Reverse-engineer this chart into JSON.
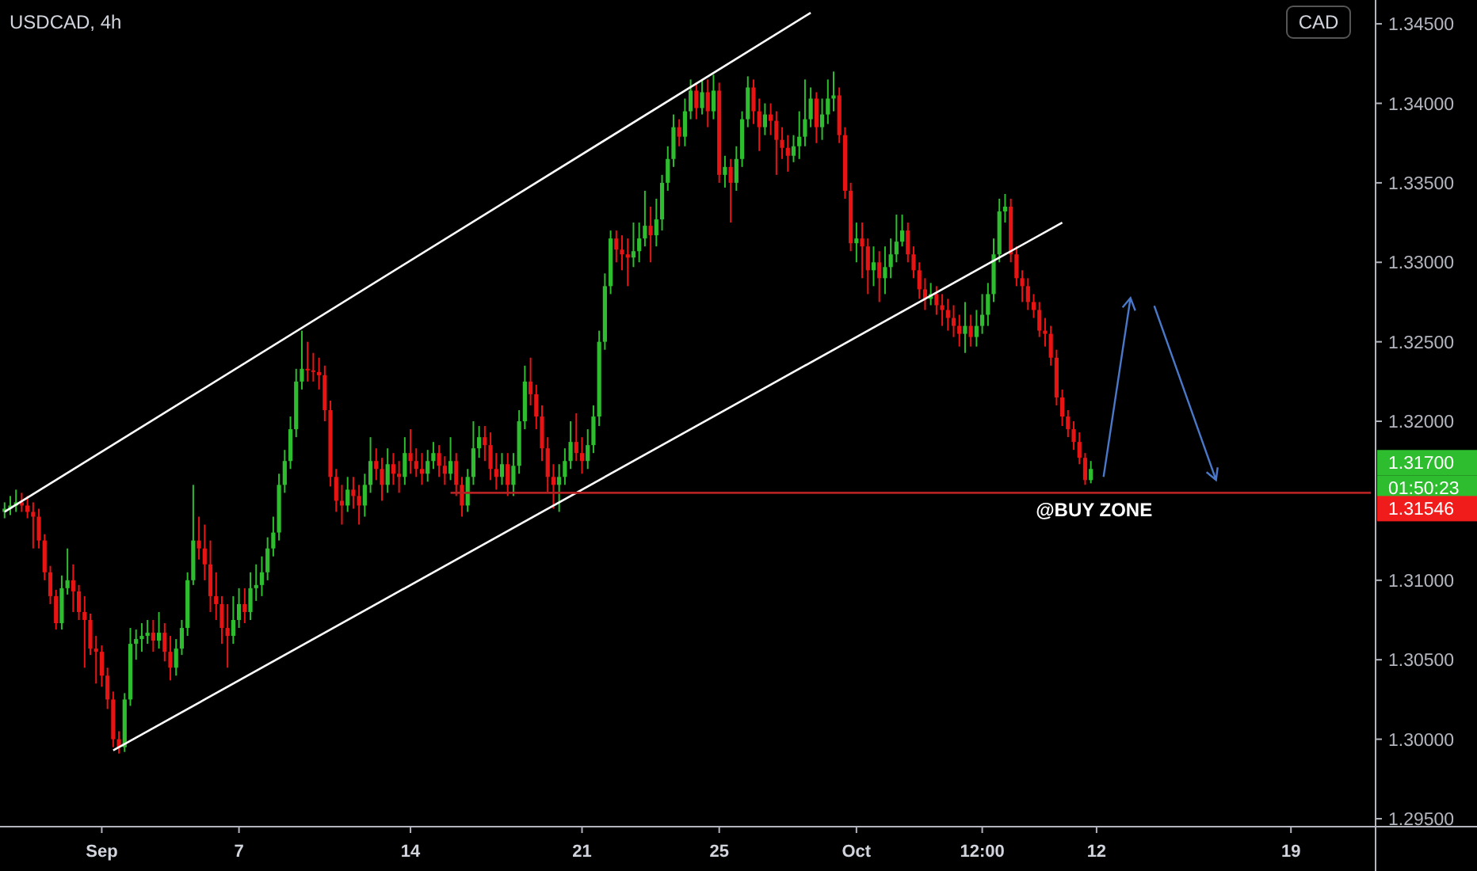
{
  "chart_data": {
    "type": "candlestick",
    "title": "USDCAD, 4h",
    "categories": [
      null,
      null,
      null,
      null,
      null,
      null,
      null,
      null,
      null,
      null,
      null,
      null,
      null,
      null,
      null,
      null,
      null,
      "Sep",
      null,
      null,
      null,
      null,
      null,
      null,
      null,
      null,
      null,
      null,
      null,
      null,
      null,
      null,
      null,
      null,
      null,
      null,
      null,
      null,
      null,
      null,
      null,
      "7",
      null,
      null,
      null,
      null,
      null,
      null,
      null,
      null,
      null,
      null,
      null,
      null,
      null,
      null,
      null,
      null,
      null,
      null,
      null,
      null,
      null,
      null,
      null,
      null,
      null,
      null,
      null,
      null,
      null,
      "14",
      null,
      null,
      null,
      null,
      null,
      null,
      null,
      null,
      null,
      null,
      null,
      null,
      null,
      null,
      null,
      null,
      null,
      null,
      null,
      null,
      null,
      null,
      null,
      null,
      null,
      null,
      null,
      null,
      null,
      "21",
      null,
      null,
      null,
      null,
      null,
      null,
      null,
      null,
      null,
      null,
      null,
      null,
      null,
      null,
      null,
      null,
      null,
      null,
      null,
      null,
      null,
      null,
      null,
      "25",
      null,
      null,
      null,
      null,
      null,
      null,
      null,
      null,
      null,
      null,
      null,
      null,
      null,
      null,
      null,
      null,
      null,
      null,
      null,
      null,
      null,
      null,
      null,
      "Oct",
      null,
      null,
      null,
      null,
      null,
      null,
      null,
      null,
      null,
      null,
      null,
      null,
      null,
      null,
      null,
      null,
      null,
      null,
      null,
      null,
      null,
      "12:00",
      null,
      null,
      null,
      null,
      null,
      null,
      null,
      null,
      null,
      null,
      null,
      null,
      null,
      null,
      null,
      null,
      null,
      null,
      null,
      "12",
      null,
      null,
      null,
      null,
      null,
      null,
      null,
      null,
      null,
      null,
      null,
      null,
      null,
      null,
      null,
      null,
      null,
      null,
      null,
      null,
      null,
      null,
      null,
      null,
      null,
      null,
      null,
      null,
      null,
      null,
      null,
      null,
      null,
      "19",
      null,
      null,
      null,
      null,
      null,
      null,
      null,
      null,
      null,
      null,
      null,
      null,
      null,
      null
    ],
    "ylim": [
      1.2945,
      1.3465
    ],
    "yticks": [
      {
        "value": 1.295,
        "label": "1.29500"
      },
      {
        "value": 1.3,
        "label": "1.30000"
      },
      {
        "value": 1.305,
        "label": "1.30500"
      },
      {
        "value": 1.31,
        "label": "1.31000"
      },
      {
        "value": 1.32,
        "label": "1.32000"
      },
      {
        "value": 1.325,
        "label": "1.32500"
      },
      {
        "value": 1.33,
        "label": "1.33000"
      },
      {
        "value": 1.335,
        "label": "1.33500"
      },
      {
        "value": 1.34,
        "label": "1.34000"
      },
      {
        "value": 1.345,
        "label": "1.34500"
      }
    ],
    "grid": false,
    "annotations": [
      "CAD",
      "@BUY ZONE",
      "1.31700",
      "01:50:23",
      "1.31546"
    ],
    "series": [
      {
        "ohlc": [
          [
            1.3143,
            1.3149,
            1.3139,
            1.3145
          ],
          [
            1.3145,
            1.3153,
            1.3141,
            1.3147
          ],
          [
            1.3147,
            1.3157,
            1.3143,
            1.3149
          ],
          [
            1.3149,
            1.3155,
            1.3143,
            1.3147
          ],
          [
            1.3147,
            1.3153,
            1.3139,
            1.3143
          ],
          [
            1.3143,
            1.3149,
            1.312,
            1.314
          ],
          [
            1.314,
            1.3145,
            1.312,
            1.3125
          ],
          [
            1.3125,
            1.3129,
            1.31,
            1.3105
          ],
          [
            1.3105,
            1.3109,
            1.3085,
            1.309
          ],
          [
            1.309,
            1.3094,
            1.3069,
            1.3073
          ],
          [
            1.3073,
            1.3103,
            1.3069,
            1.3095
          ],
          [
            1.3095,
            1.312,
            1.3091,
            1.31
          ],
          [
            1.31,
            1.311,
            1.308,
            1.3093
          ],
          [
            1.3093,
            1.3097,
            1.3075,
            1.308
          ],
          [
            1.308,
            1.309,
            1.3045,
            1.3075
          ],
          [
            1.3075,
            1.3079,
            1.3053,
            1.3057
          ],
          [
            1.3057,
            1.3065,
            1.3035,
            1.3055
          ],
          [
            1.3055,
            1.3059,
            1.3033,
            1.304
          ],
          [
            1.304,
            1.3045,
            1.3019,
            1.3025
          ],
          [
            1.3025,
            1.303,
            1.2995,
            1.3
          ],
          [
            1.3,
            1.3005,
            1.2991,
            1.2995
          ],
          [
            1.2995,
            1.3029,
            1.2992,
            1.3025
          ],
          [
            1.3025,
            1.307,
            1.3021,
            1.306
          ],
          [
            1.306,
            1.3069,
            1.305,
            1.3063
          ],
          [
            1.3063,
            1.3073,
            1.3055,
            1.3065
          ],
          [
            1.3065,
            1.3075,
            1.306,
            1.3067
          ],
          [
            1.3067,
            1.3075,
            1.3055,
            1.3062
          ],
          [
            1.3062,
            1.308,
            1.3057,
            1.3067
          ],
          [
            1.3067,
            1.3073,
            1.3049,
            1.3055
          ],
          [
            1.3055,
            1.3065,
            1.3037,
            1.3045
          ],
          [
            1.3045,
            1.3063,
            1.304,
            1.3057
          ],
          [
            1.3057,
            1.3075,
            1.3053,
            1.307
          ],
          [
            1.307,
            1.3105,
            1.3065,
            1.31
          ],
          [
            1.31,
            1.316,
            1.3097,
            1.3125
          ],
          [
            1.3125,
            1.314,
            1.3113,
            1.312
          ],
          [
            1.312,
            1.3135,
            1.31,
            1.311
          ],
          [
            1.311,
            1.3125,
            1.308,
            1.309
          ],
          [
            1.309,
            1.3105,
            1.3075,
            1.3085
          ],
          [
            1.3085,
            1.309,
            1.306,
            1.307
          ],
          [
            1.307,
            1.3085,
            1.3045,
            1.3065
          ],
          [
            1.3065,
            1.309,
            1.306,
            1.3075
          ],
          [
            1.3075,
            1.3095,
            1.307,
            1.3085
          ],
          [
            1.3085,
            1.3095,
            1.3073,
            1.308
          ],
          [
            1.308,
            1.3105,
            1.3075,
            1.3095
          ],
          [
            1.3095,
            1.311,
            1.3087,
            1.3097
          ],
          [
            1.3097,
            1.3115,
            1.309,
            1.3105
          ],
          [
            1.3105,
            1.3127,
            1.31,
            1.312
          ],
          [
            1.312,
            1.314,
            1.3115,
            1.313
          ],
          [
            1.313,
            1.3167,
            1.3125,
            1.316
          ],
          [
            1.316,
            1.3182,
            1.3155,
            1.3175
          ],
          [
            1.3175,
            1.3203,
            1.317,
            1.3195
          ],
          [
            1.3195,
            1.3233,
            1.319,
            1.3225
          ],
          [
            1.3225,
            1.3257,
            1.322,
            1.3233
          ],
          [
            1.3233,
            1.325,
            1.3225,
            1.3232
          ],
          [
            1.3232,
            1.3243,
            1.3225,
            1.3231
          ],
          [
            1.3231,
            1.324,
            1.322,
            1.3229
          ],
          [
            1.3229,
            1.3235,
            1.32,
            1.3207
          ],
          [
            1.3207,
            1.3213,
            1.3159,
            1.3165
          ],
          [
            1.3165,
            1.317,
            1.3143,
            1.315
          ],
          [
            1.315,
            1.316,
            1.3135,
            1.3147
          ],
          [
            1.3147,
            1.3165,
            1.3143,
            1.3157
          ],
          [
            1.3157,
            1.3165,
            1.3145,
            1.3153
          ],
          [
            1.3153,
            1.316,
            1.3135,
            1.3147
          ],
          [
            1.3147,
            1.3167,
            1.314,
            1.316
          ],
          [
            1.316,
            1.319,
            1.3155,
            1.3175
          ],
          [
            1.3175,
            1.3183,
            1.3163,
            1.317
          ],
          [
            1.317,
            1.3177,
            1.315,
            1.316
          ],
          [
            1.316,
            1.3183,
            1.3155,
            1.3173
          ],
          [
            1.3173,
            1.318,
            1.316,
            1.3167
          ],
          [
            1.3167,
            1.3175,
            1.3155,
            1.3165
          ],
          [
            1.3165,
            1.319,
            1.316,
            1.318
          ],
          [
            1.318,
            1.3195,
            1.3167,
            1.3175
          ],
          [
            1.3175,
            1.3183,
            1.3165,
            1.317
          ],
          [
            1.317,
            1.318,
            1.316,
            1.3167
          ],
          [
            1.3167,
            1.3182,
            1.3162,
            1.3175
          ],
          [
            1.3175,
            1.3187,
            1.317,
            1.318
          ],
          [
            1.318,
            1.3185,
            1.3165,
            1.3172
          ],
          [
            1.3172,
            1.3178,
            1.316,
            1.3167
          ],
          [
            1.3167,
            1.319,
            1.3163,
            1.3175
          ],
          [
            1.3175,
            1.318,
            1.3153,
            1.316
          ],
          [
            1.316,
            1.3165,
            1.314,
            1.3147
          ],
          [
            1.3147,
            1.317,
            1.3143,
            1.3165
          ],
          [
            1.3165,
            1.32,
            1.316,
            1.3183
          ],
          [
            1.3183,
            1.3197,
            1.3177,
            1.319
          ],
          [
            1.319,
            1.3197,
            1.3175,
            1.3185
          ],
          [
            1.3185,
            1.3193,
            1.3163,
            1.317
          ],
          [
            1.317,
            1.318,
            1.3157,
            1.3165
          ],
          [
            1.3165,
            1.318,
            1.316,
            1.3173
          ],
          [
            1.3173,
            1.318,
            1.3153,
            1.316
          ],
          [
            1.316,
            1.318,
            1.3153,
            1.3172
          ],
          [
            1.3172,
            1.3207,
            1.3167,
            1.32
          ],
          [
            1.32,
            1.3235,
            1.3195,
            1.3225
          ],
          [
            1.3225,
            1.324,
            1.321,
            1.3217
          ],
          [
            1.3217,
            1.3223,
            1.3195,
            1.3203
          ],
          [
            1.3203,
            1.321,
            1.3175,
            1.3183
          ],
          [
            1.3183,
            1.319,
            1.3155,
            1.3165
          ],
          [
            1.3165,
            1.3173,
            1.3145,
            1.316
          ],
          [
            1.316,
            1.3173,
            1.3143,
            1.3165
          ],
          [
            1.3165,
            1.3183,
            1.316,
            1.3175
          ],
          [
            1.3175,
            1.32,
            1.317,
            1.3187
          ],
          [
            1.3187,
            1.3205,
            1.3175,
            1.318
          ],
          [
            1.318,
            1.319,
            1.3167,
            1.3175
          ],
          [
            1.3175,
            1.3195,
            1.317,
            1.3185
          ],
          [
            1.3185,
            1.321,
            1.318,
            1.3203
          ],
          [
            1.3203,
            1.3257,
            1.3197,
            1.325
          ],
          [
            1.325,
            1.3293,
            1.3245,
            1.3285
          ],
          [
            1.3285,
            1.332,
            1.328,
            1.3315
          ],
          [
            1.3315,
            1.332,
            1.33,
            1.3308
          ],
          [
            1.3308,
            1.3317,
            1.3295,
            1.3305
          ],
          [
            1.3305,
            1.3315,
            1.3285,
            1.3303
          ],
          [
            1.3303,
            1.3325,
            1.3297,
            1.3307
          ],
          [
            1.3307,
            1.3325,
            1.33,
            1.3315
          ],
          [
            1.3315,
            1.3345,
            1.331,
            1.3323
          ],
          [
            1.3323,
            1.3335,
            1.33,
            1.3317
          ],
          [
            1.3317,
            1.334,
            1.331,
            1.3327
          ],
          [
            1.3327,
            1.3355,
            1.332,
            1.335
          ],
          [
            1.335,
            1.3373,
            1.3345,
            1.3365
          ],
          [
            1.3365,
            1.3393,
            1.336,
            1.3385
          ],
          [
            1.3385,
            1.339,
            1.3373,
            1.3379
          ],
          [
            1.3379,
            1.3403,
            1.3373,
            1.3395
          ],
          [
            1.3395,
            1.3415,
            1.339,
            1.3408
          ],
          [
            1.3408,
            1.3413,
            1.339,
            1.3397
          ],
          [
            1.3397,
            1.3415,
            1.3393,
            1.3407
          ],
          [
            1.3407,
            1.3415,
            1.3385,
            1.3395
          ],
          [
            1.3395,
            1.3418,
            1.339,
            1.3408
          ],
          [
            1.3408,
            1.3413,
            1.335,
            1.3355
          ],
          [
            1.3355,
            1.3367,
            1.3347,
            1.336
          ],
          [
            1.336,
            1.3365,
            1.3325,
            1.335
          ],
          [
            1.335,
            1.3373,
            1.3345,
            1.3365
          ],
          [
            1.3365,
            1.3395,
            1.336,
            1.339
          ],
          [
            1.339,
            1.3417,
            1.3385,
            1.341
          ],
          [
            1.341,
            1.3415,
            1.3387,
            1.3395
          ],
          [
            1.3395,
            1.3403,
            1.337,
            1.3385
          ],
          [
            1.3385,
            1.34,
            1.338,
            1.3393
          ],
          [
            1.3393,
            1.34,
            1.338,
            1.3389
          ],
          [
            1.3389,
            1.3395,
            1.3355,
            1.3377
          ],
          [
            1.3377,
            1.3385,
            1.3365,
            1.3372
          ],
          [
            1.3372,
            1.338,
            1.3357,
            1.3367
          ],
          [
            1.3367,
            1.338,
            1.3363,
            1.3373
          ],
          [
            1.3373,
            1.3395,
            1.3365,
            1.3379
          ],
          [
            1.3379,
            1.3415,
            1.3373,
            1.339
          ],
          [
            1.339,
            1.341,
            1.3385,
            1.3403
          ],
          [
            1.3403,
            1.3407,
            1.3375,
            1.3385
          ],
          [
            1.3385,
            1.3403,
            1.3377,
            1.3393
          ],
          [
            1.3393,
            1.3415,
            1.3387,
            1.3403
          ],
          [
            1.3403,
            1.342,
            1.3395,
            1.3405
          ],
          [
            1.3405,
            1.341,
            1.3375,
            1.338
          ],
          [
            1.338,
            1.3385,
            1.334,
            1.3345
          ],
          [
            1.3345,
            1.335,
            1.3307,
            1.3312
          ],
          [
            1.3312,
            1.3325,
            1.33,
            1.3315
          ],
          [
            1.3315,
            1.3325,
            1.329,
            1.331
          ],
          [
            1.331,
            1.3315,
            1.328,
            1.3295
          ],
          [
            1.3295,
            1.331,
            1.3285,
            1.33
          ],
          [
            1.33,
            1.3307,
            1.3275,
            1.329
          ],
          [
            1.329,
            1.331,
            1.328,
            1.3297
          ],
          [
            1.3297,
            1.3315,
            1.329,
            1.3305
          ],
          [
            1.3305,
            1.333,
            1.33,
            1.3313
          ],
          [
            1.3313,
            1.333,
            1.331,
            1.332
          ],
          [
            1.332,
            1.3325,
            1.33,
            1.3305
          ],
          [
            1.3305,
            1.331,
            1.329,
            1.3295
          ],
          [
            1.3295,
            1.33,
            1.3277,
            1.3283
          ],
          [
            1.3283,
            1.329,
            1.327,
            1.3277
          ],
          [
            1.3277,
            1.3287,
            1.3273,
            1.328
          ],
          [
            1.328,
            1.3285,
            1.3267,
            1.3273
          ],
          [
            1.3273,
            1.328,
            1.326,
            1.327
          ],
          [
            1.327,
            1.3277,
            1.3257,
            1.3265
          ],
          [
            1.3265,
            1.3273,
            1.3253,
            1.326
          ],
          [
            1.326,
            1.3267,
            1.3247,
            1.3255
          ],
          [
            1.3255,
            1.3275,
            1.3243,
            1.326
          ],
          [
            1.326,
            1.3267,
            1.3247,
            1.3253
          ],
          [
            1.3253,
            1.327,
            1.3247,
            1.326
          ],
          [
            1.326,
            1.328,
            1.3255,
            1.3267
          ],
          [
            1.3267,
            1.3287,
            1.326,
            1.328
          ],
          [
            1.328,
            1.3315,
            1.3275,
            1.3305
          ],
          [
            1.3305,
            1.334,
            1.33,
            1.3332
          ],
          [
            1.3332,
            1.3343,
            1.3325,
            1.3335
          ],
          [
            1.3335,
            1.334,
            1.33,
            1.3305
          ],
          [
            1.3305,
            1.331,
            1.3285,
            1.329
          ],
          [
            1.329,
            1.3295,
            1.3275,
            1.3285
          ],
          [
            1.3285,
            1.329,
            1.327,
            1.3275
          ],
          [
            1.3275,
            1.328,
            1.3265,
            1.327
          ],
          [
            1.327,
            1.3275,
            1.3253,
            1.3257
          ],
          [
            1.3257,
            1.3265,
            1.3247,
            1.3255
          ],
          [
            1.3255,
            1.326,
            1.3235,
            1.324
          ],
          [
            1.324,
            1.3245,
            1.321,
            1.3215
          ],
          [
            1.3215,
            1.322,
            1.3197,
            1.3203
          ],
          [
            1.3203,
            1.3207,
            1.319,
            1.3195
          ],
          [
            1.3195,
            1.32,
            1.3182,
            1.3187
          ],
          [
            1.3187,
            1.3193,
            1.3173,
            1.3177
          ],
          [
            1.3177,
            1.318,
            1.316,
            1.3163
          ],
          [
            1.3163,
            1.3175,
            1.3161,
            1.317
          ],
          null,
          null,
          null,
          null,
          null,
          null,
          null,
          null,
          null,
          null,
          null,
          null,
          null,
          null,
          null,
          null,
          null,
          null,
          null,
          null,
          null,
          null,
          null,
          null,
          null,
          null,
          null,
          null,
          null,
          null,
          null,
          null,
          null,
          null,
          null,
          null,
          null,
          null,
          null,
          null,
          null,
          null,
          null,
          null,
          null,
          null,
          null,
          null,
          null
        ]
      },
      {
        "type": "line",
        "color": "#ffffff",
        "values": [
          1.3143,
          null,
          null,
          null,
          null,
          null,
          null,
          null,
          null,
          null,
          null,
          null,
          null,
          null,
          null,
          null,
          null,
          null,
          null,
          null,
          null,
          null,
          null,
          null,
          null,
          null,
          null,
          null,
          null,
          null,
          null,
          null,
          null,
          null,
          null,
          null,
          null,
          null,
          null,
          null,
          null,
          null,
          null,
          null,
          null,
          null,
          null,
          null,
          null,
          null,
          null,
          null,
          null,
          null,
          null,
          null,
          null,
          null,
          null,
          null,
          null,
          null,
          null,
          null,
          null,
          null,
          null,
          null,
          null,
          null,
          null,
          null,
          null,
          null,
          null,
          null,
          null,
          null,
          null,
          null,
          null,
          null,
          null,
          null,
          null,
          null,
          null,
          null,
          null,
          null,
          null,
          null,
          null,
          null,
          null,
          null,
          null,
          null,
          null,
          null,
          null,
          null,
          null,
          null,
          null,
          null,
          null,
          null,
          null,
          null,
          null,
          null,
          null,
          null,
          null,
          null,
          null,
          null,
          null,
          null,
          null,
          null,
          null,
          null,
          null,
          null,
          null,
          null,
          null,
          null,
          null,
          null,
          null,
          null,
          null,
          null,
          null,
          null,
          null,
          null,
          null,
          1.3457,
          null,
          null,
          null,
          null,
          null,
          null,
          null,
          null,
          null,
          null,
          null,
          null,
          null,
          null,
          null,
          null,
          null,
          null,
          null,
          null,
          null,
          null,
          null,
          null,
          null,
          null,
          null,
          null,
          null,
          null,
          null,
          null,
          null,
          null,
          null,
          null,
          null,
          null,
          null,
          null,
          null,
          null,
          null,
          null,
          null,
          null,
          null,
          null,
          null,
          null,
          null,
          null,
          null,
          null,
          null,
          null,
          null,
          null,
          null,
          null,
          null,
          null,
          null,
          null,
          null,
          null,
          null,
          null,
          null,
          null,
          null,
          null,
          null,
          null,
          null,
          null,
          null,
          null,
          null,
          null,
          null,
          null,
          null,
          null,
          null,
          null,
          null,
          null,
          null,
          null,
          null,
          null,
          null,
          null,
          null,
          null,
          null,
          null
        ]
      },
      {
        "type": "line",
        "color": "#ffffff",
        "values": [
          null,
          null,
          null,
          null,
          null,
          null,
          null,
          null,
          null,
          null,
          null,
          null,
          null,
          null,
          null,
          null,
          null,
          null,
          null,
          1.2993,
          null,
          null,
          null,
          null,
          null,
          null,
          null,
          null,
          null,
          null,
          null,
          null,
          null,
          null,
          null,
          null,
          null,
          null,
          null,
          null,
          null,
          null,
          null,
          null,
          null,
          null,
          null,
          null,
          null,
          null,
          null,
          null,
          null,
          null,
          null,
          null,
          null,
          null,
          null,
          null,
          null,
          null,
          null,
          null,
          null,
          null,
          null,
          null,
          null,
          null,
          null,
          null,
          null,
          null,
          null,
          null,
          null,
          null,
          null,
          null,
          null,
          null,
          null,
          null,
          null,
          null,
          null,
          null,
          null,
          null,
          null,
          null,
          null,
          null,
          null,
          null,
          null,
          null,
          null,
          null,
          null,
          null,
          null,
          null,
          null,
          null,
          null,
          null,
          null,
          null,
          null,
          null,
          null,
          null,
          null,
          null,
          null,
          null,
          null,
          null,
          null,
          null,
          null,
          null,
          null,
          null,
          null,
          null,
          null,
          null,
          null,
          null,
          null,
          null,
          null,
          null,
          null,
          null,
          null,
          null,
          null,
          null,
          null,
          null,
          null,
          null,
          null,
          null,
          null,
          null,
          null,
          null,
          null,
          null,
          null,
          null,
          null,
          null,
          null,
          null,
          null,
          null,
          null,
          null,
          null,
          null,
          null,
          null,
          null,
          null,
          null,
          null,
          null,
          null,
          null,
          null,
          null,
          null,
          null,
          null,
          null,
          null,
          null,
          null,
          null,
          1.3325,
          null,
          null,
          null,
          null,
          null,
          null,
          null,
          null,
          null,
          null,
          null,
          null,
          null,
          null,
          null,
          null,
          null,
          null,
          null,
          null,
          null,
          null,
          null,
          null,
          null,
          null,
          null,
          null,
          null,
          null,
          null,
          null,
          null,
          null,
          null,
          null,
          null,
          null,
          null,
          null,
          null,
          null,
          null,
          null,
          null,
          null,
          null,
          null,
          null,
          null,
          null,
          null,
          null,
          null
        ]
      },
      {
        "type": "line",
        "color": "#b22222",
        "values": [
          null,
          null,
          null,
          null,
          null,
          null,
          null,
          null,
          null,
          null,
          null,
          null,
          null,
          null,
          null,
          null,
          null,
          null,
          null,
          null,
          null,
          null,
          null,
          null,
          null,
          null,
          null,
          null,
          null,
          null,
          null,
          null,
          null,
          null,
          null,
          null,
          null,
          null,
          null,
          null,
          null,
          null,
          null,
          null,
          null,
          null,
          null,
          null,
          null,
          null,
          null,
          null,
          null,
          null,
          null,
          null,
          null,
          null,
          null,
          null,
          null,
          null,
          null,
          null,
          null,
          null,
          null,
          null,
          null,
          null,
          null,
          null,
          null,
          null,
          null,
          null,
          null,
          null,
          1.3155,
          null,
          null,
          null,
          null,
          null,
          null,
          null,
          null,
          null,
          null,
          null,
          null,
          null,
          null,
          null,
          null,
          null,
          null,
          null,
          null,
          null,
          null,
          null,
          null,
          null,
          null,
          null,
          null,
          null,
          null,
          null,
          null,
          null,
          null,
          null,
          null,
          null,
          null,
          null,
          null,
          null,
          null,
          null,
          null,
          null,
          null,
          null,
          null,
          null,
          null,
          null,
          null,
          null,
          null,
          null,
          null,
          null,
          null,
          null,
          null,
          null,
          null,
          null,
          null,
          null,
          null,
          null,
          null,
          null,
          null,
          null,
          null,
          null,
          null,
          null,
          null,
          null,
          null,
          null,
          null,
          null,
          null,
          null,
          null,
          null,
          null,
          null,
          null,
          null,
          null,
          null,
          null,
          null,
          null,
          null,
          null,
          null,
          null,
          null,
          null,
          null,
          null,
          null,
          null,
          null,
          null,
          null,
          null,
          null,
          null,
          null,
          null,
          null,
          null,
          null,
          null,
          null,
          null,
          null,
          null,
          null,
          null,
          null,
          null,
          null,
          null,
          null,
          null,
          null,
          null,
          null,
          null,
          null,
          null,
          null,
          null,
          null,
          null,
          null,
          null,
          null,
          null,
          null,
          null,
          null,
          null,
          null,
          null,
          null,
          null,
          null,
          null,
          null,
          null,
          null,
          null,
          null,
          null,
          null,
          null,
          1.3155
        ]
      }
    ]
  }
}
